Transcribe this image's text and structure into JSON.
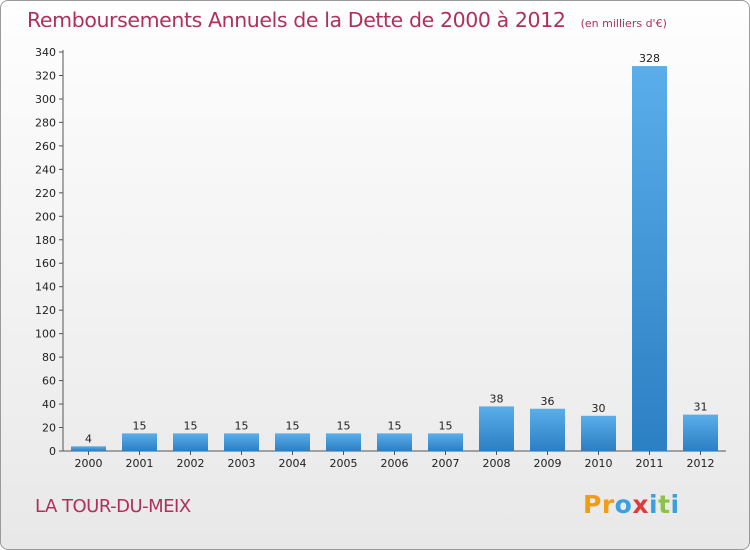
{
  "chart_data": {
    "type": "bar",
    "title": "Remboursements Annuels de la Dette de 2000 à 2012",
    "unit_note": "(en milliers d'€)",
    "categories": [
      "2000",
      "2001",
      "2002",
      "2003",
      "2004",
      "2005",
      "2006",
      "2007",
      "2008",
      "2009",
      "2010",
      "2011",
      "2012"
    ],
    "values": [
      4,
      15,
      15,
      15,
      15,
      15,
      15,
      15,
      38,
      36,
      30,
      328,
      31
    ],
    "data_labels": [
      "4",
      "15",
      "15",
      "15",
      "15",
      "15",
      "15",
      "15",
      "38",
      "36",
      "30",
      "328",
      "31"
    ],
    "ylim": [
      0,
      340
    ],
    "yticks": [
      0,
      20,
      40,
      60,
      80,
      100,
      120,
      140,
      160,
      180,
      200,
      220,
      240,
      260,
      280,
      300,
      320,
      340
    ],
    "xlabel": "",
    "ylabel": "",
    "grid": false,
    "legend": "none",
    "colors": {
      "bar_light": "#5aaeea",
      "bar_dark": "#2b7fc3",
      "title": "#b0305a"
    }
  },
  "commune": "LA TOUR-DU-MEIX",
  "logo": {
    "text": "Proxiti",
    "letters": [
      {
        "ch": "P",
        "color": "#f39c12"
      },
      {
        "ch": "r",
        "color": "#f39c12"
      },
      {
        "ch": "o",
        "color": "#3aa0e0"
      },
      {
        "ch": "x",
        "color": "#e03a3a"
      },
      {
        "ch": "i",
        "color": "#3aa0e0"
      },
      {
        "ch": "t",
        "color": "#8bc34a"
      },
      {
        "ch": "i",
        "color": "#3aa0e0"
      }
    ]
  }
}
